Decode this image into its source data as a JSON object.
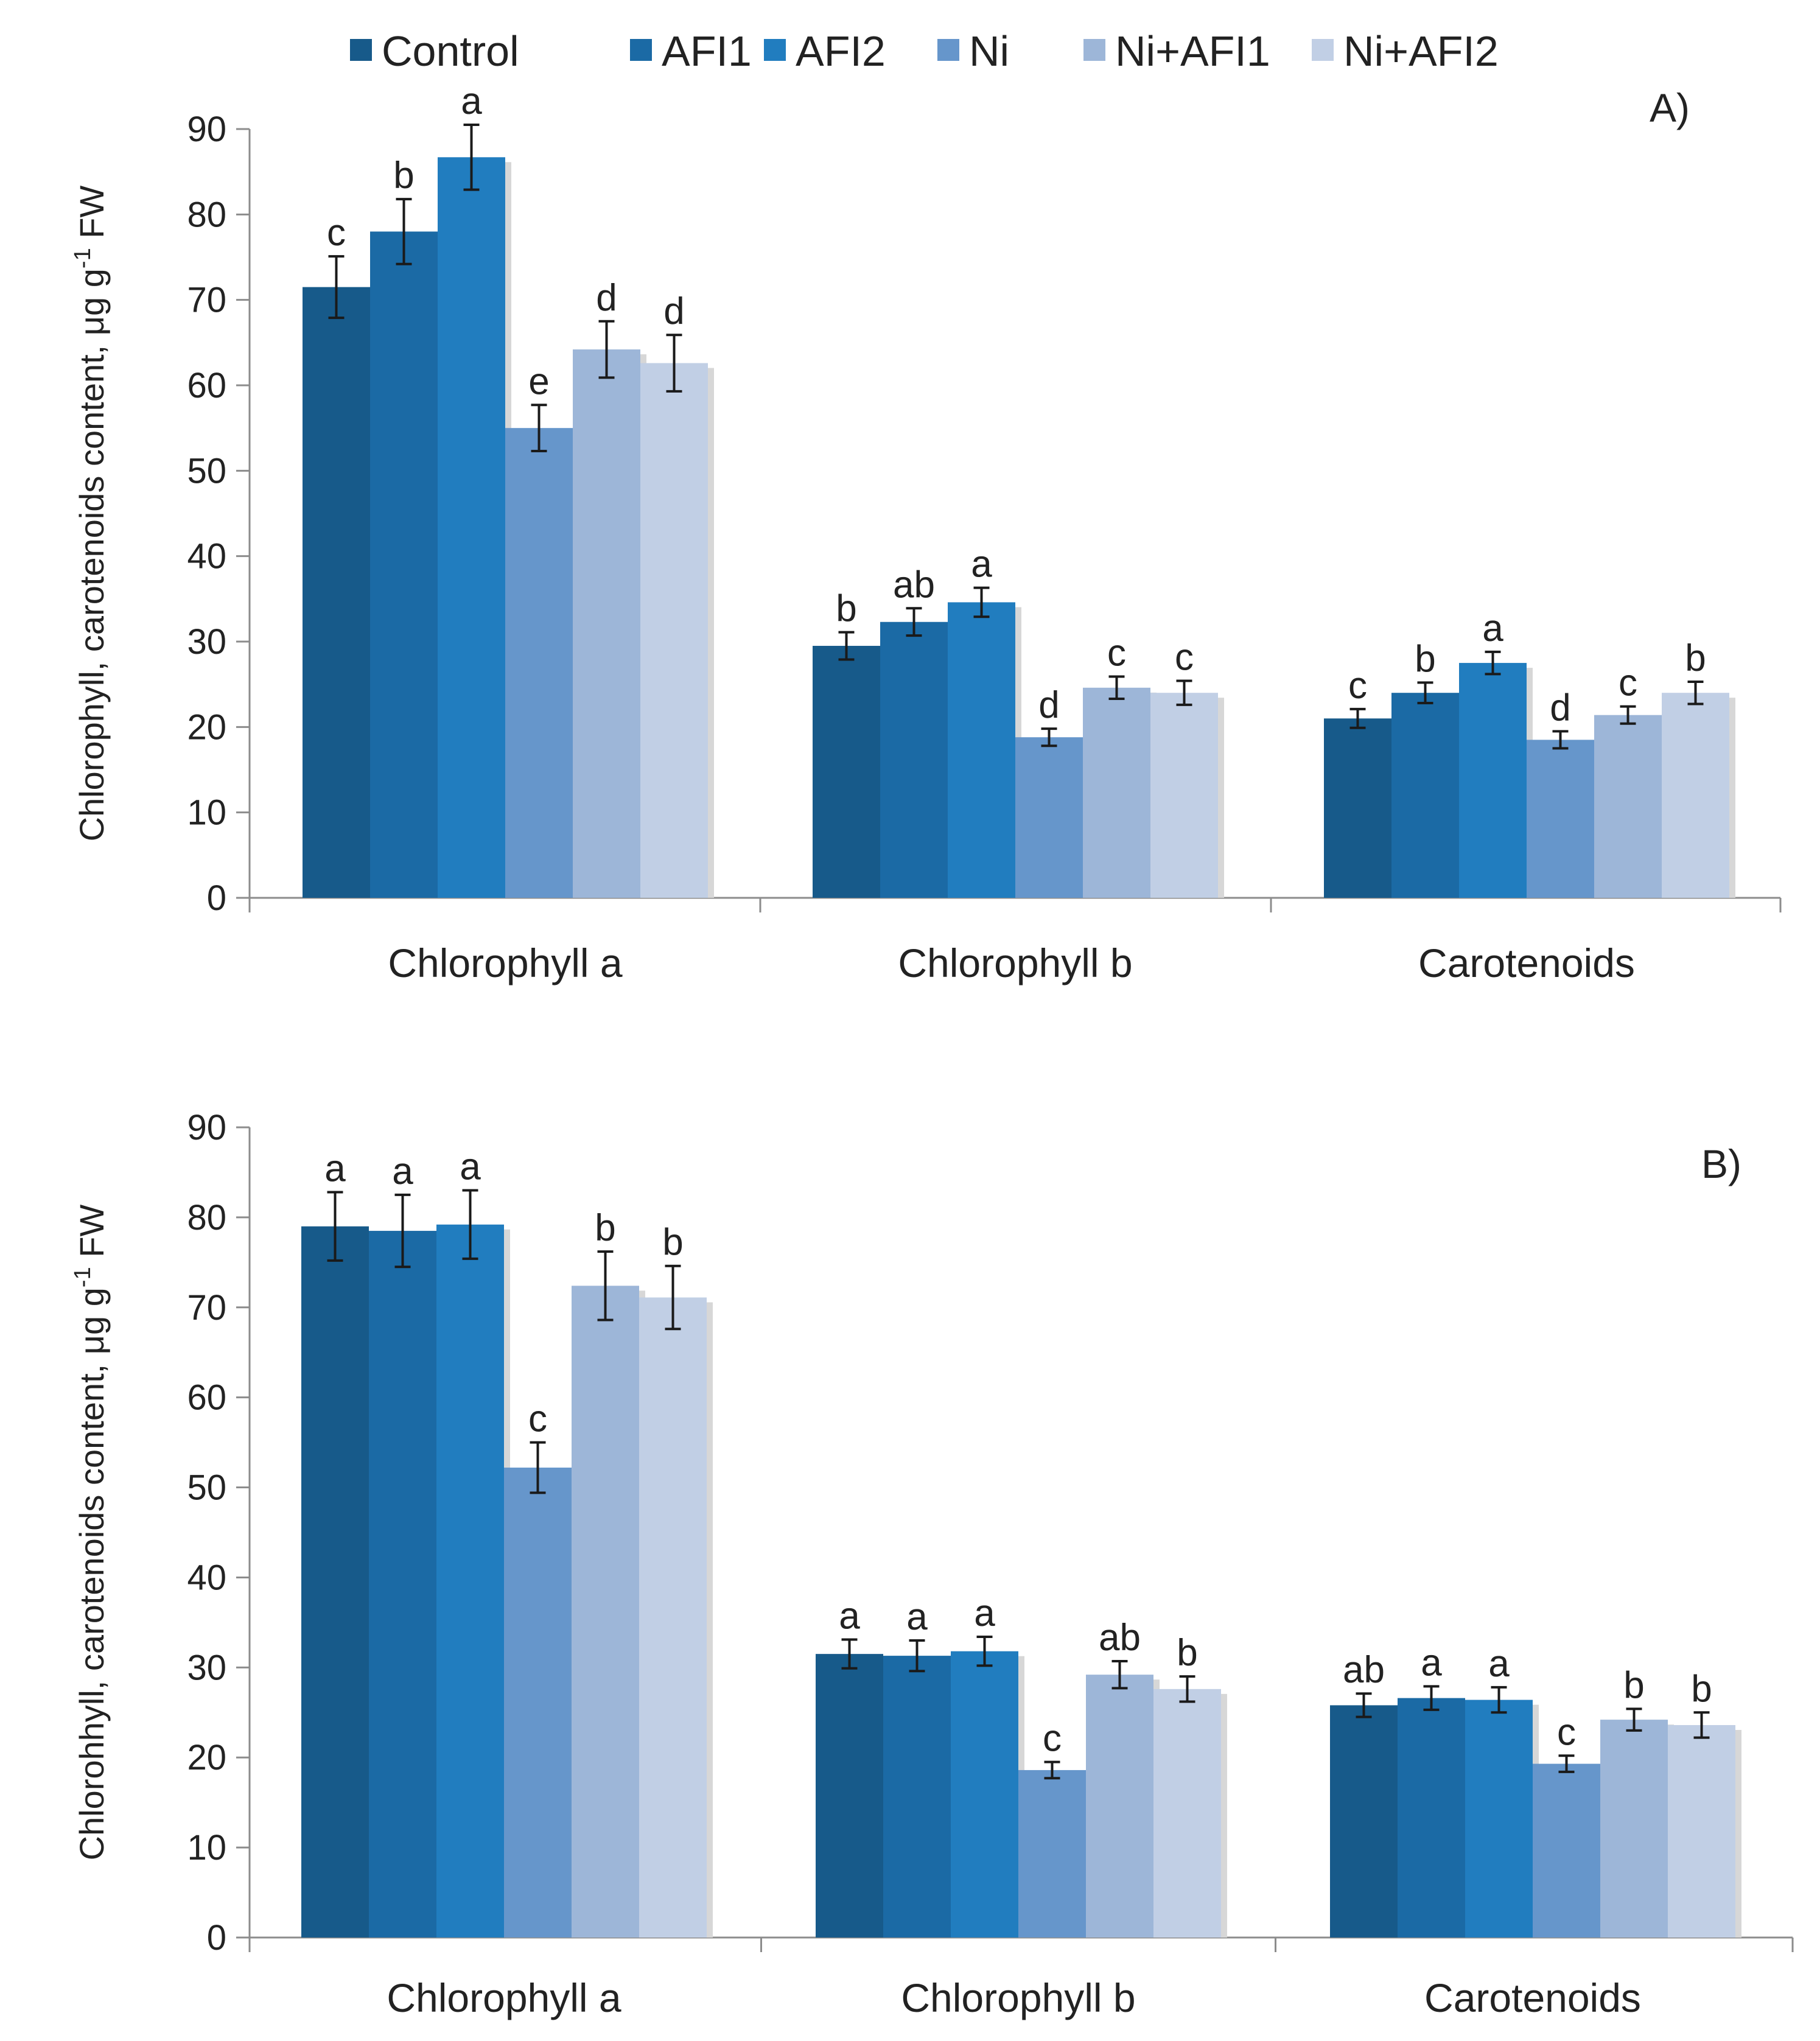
{
  "legend": [
    {
      "name": "Control",
      "color": "#175a8a"
    },
    {
      "name": "AFI1",
      "color": "#1b6aa5"
    },
    {
      "name": "AFI2",
      "color": "#217dbf"
    },
    {
      "name": "Ni",
      "color": "#6696cb"
    },
    {
      "name": "Ni+AFI1",
      "color": "#9db6d8"
    },
    {
      "name": "Ni+AFI2",
      "color": "#c1cfe5"
    }
  ],
  "chart_data": [
    {
      "type": "bar",
      "panel_label": "A)",
      "ylabel_main": "Chlorophyll, carotenoids content, μg g",
      "ylabel_sup": "-1",
      "ylabel_tail": " FW",
      "ylim": [
        0,
        90
      ],
      "yticks": [
        "0",
        "10",
        "20",
        "30",
        "40",
        "50",
        "60",
        "70",
        "80",
        "90"
      ],
      "categories": [
        "Chlorophyll a",
        "Chlorophyll b",
        "Carotenoids"
      ],
      "series": [
        {
          "name": "Control",
          "values": [
            71.5,
            29.5,
            21.0
          ],
          "errors": [
            3.6,
            1.6,
            1.1
          ],
          "letters": [
            "c",
            "b",
            "c"
          ]
        },
        {
          "name": "AFI1",
          "values": [
            78.0,
            32.3,
            24.0
          ],
          "errors": [
            3.8,
            1.6,
            1.2
          ],
          "letters": [
            "b",
            "ab",
            "b"
          ]
        },
        {
          "name": "AFI2",
          "values": [
            86.7,
            34.6,
            27.5
          ],
          "errors": [
            3.8,
            1.7,
            1.3
          ],
          "letters": [
            "a",
            "a",
            "a"
          ]
        },
        {
          "name": "Ni",
          "values": [
            55.0,
            18.8,
            18.5
          ],
          "errors": [
            2.7,
            1.0,
            1.0
          ],
          "letters": [
            "e",
            "d",
            "d"
          ]
        },
        {
          "name": "Ni+AFI1",
          "values": [
            64.2,
            24.6,
            21.4
          ],
          "errors": [
            3.3,
            1.3,
            1.0
          ],
          "letters": [
            "d",
            "c",
            "c"
          ]
        },
        {
          "name": "Ni+AFI2",
          "values": [
            62.6,
            24.0,
            24.0
          ],
          "errors": [
            3.3,
            1.4,
            1.3
          ],
          "letters": [
            "d",
            "c",
            "b"
          ]
        }
      ]
    },
    {
      "type": "bar",
      "panel_label": "B)",
      "ylabel_main": "Chlorohhyll, carotenoids content, μg g",
      "ylabel_sup": "-1",
      "ylabel_tail": " FW",
      "ylim": [
        0,
        90
      ],
      "yticks": [
        "0",
        "10",
        "20",
        "30",
        "40",
        "50",
        "60",
        "70",
        "80",
        "90"
      ],
      "categories": [
        "Chlorophyll a",
        "Chlorophyll b",
        "Carotenoids"
      ],
      "series": [
        {
          "name": "Control",
          "values": [
            79.0,
            31.5,
            25.8
          ],
          "errors": [
            3.8,
            1.6,
            1.3
          ],
          "letters": [
            "a",
            "a",
            "ab"
          ]
        },
        {
          "name": "AFI1",
          "values": [
            78.5,
            31.3,
            26.6
          ],
          "errors": [
            4.0,
            1.7,
            1.3
          ],
          "letters": [
            "a",
            "a",
            "a"
          ]
        },
        {
          "name": "AFI2",
          "values": [
            79.2,
            31.8,
            26.4
          ],
          "errors": [
            3.8,
            1.6,
            1.4
          ],
          "letters": [
            "a",
            "a",
            "a"
          ]
        },
        {
          "name": "Ni",
          "values": [
            52.2,
            18.6,
            19.3
          ],
          "errors": [
            2.8,
            0.9,
            0.9
          ],
          "letters": [
            "c",
            "c",
            "c"
          ]
        },
        {
          "name": "Ni+AFI1",
          "values": [
            72.4,
            29.2,
            24.2
          ],
          "errors": [
            3.8,
            1.5,
            1.2
          ],
          "letters": [
            "b",
            "ab",
            "b"
          ]
        },
        {
          "name": "Ni+AFI2",
          "values": [
            71.1,
            27.6,
            23.6
          ],
          "errors": [
            3.5,
            1.4,
            1.4
          ],
          "letters": [
            "b",
            "b",
            "b"
          ]
        }
      ]
    }
  ]
}
